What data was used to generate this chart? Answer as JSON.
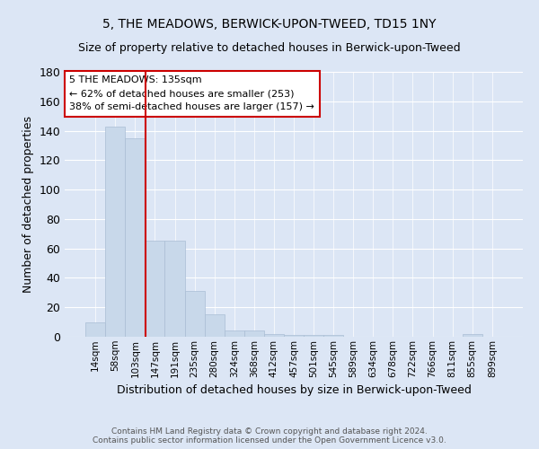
{
  "title": "5, THE MEADOWS, BERWICK-UPON-TWEED, TD15 1NY",
  "subtitle": "Size of property relative to detached houses in Berwick-upon-Tweed",
  "xlabel": "Distribution of detached houses by size in Berwick-upon-Tweed",
  "ylabel": "Number of detached properties",
  "footnote1": "Contains HM Land Registry data © Crown copyright and database right 2024.",
  "footnote2": "Contains public sector information licensed under the Open Government Licence v3.0.",
  "bin_labels": [
    "14sqm",
    "58sqm",
    "103sqm",
    "147sqm",
    "191sqm",
    "235sqm",
    "280sqm",
    "324sqm",
    "368sqm",
    "412sqm",
    "457sqm",
    "501sqm",
    "545sqm",
    "589sqm",
    "634sqm",
    "678sqm",
    "722sqm",
    "766sqm",
    "811sqm",
    "855sqm",
    "899sqm"
  ],
  "bin_values": [
    10,
    143,
    135,
    65,
    65,
    31,
    15,
    4,
    4,
    2,
    1,
    1,
    1,
    0,
    0,
    0,
    0,
    0,
    0,
    2,
    0
  ],
  "bar_color": "#c8d8ea",
  "bar_edge_color": "#aabdd4",
  "background_color": "#dce6f5",
  "grid_color": "#ffffff",
  "property_line_bin": 2.52,
  "property_line_color": "#cc0000",
  "annotation_line1": "5 THE MEADOWS: 135sqm",
  "annotation_line2": "← 62% of detached houses are smaller (253)",
  "annotation_line3": "38% of semi-detached houses are larger (157) →",
  "annotation_box_color": "#ffffff",
  "annotation_box_edge": "#cc0000",
  "ylim": [
    0,
    180
  ],
  "yticks": [
    0,
    20,
    40,
    60,
    80,
    100,
    120,
    140,
    160,
    180
  ]
}
